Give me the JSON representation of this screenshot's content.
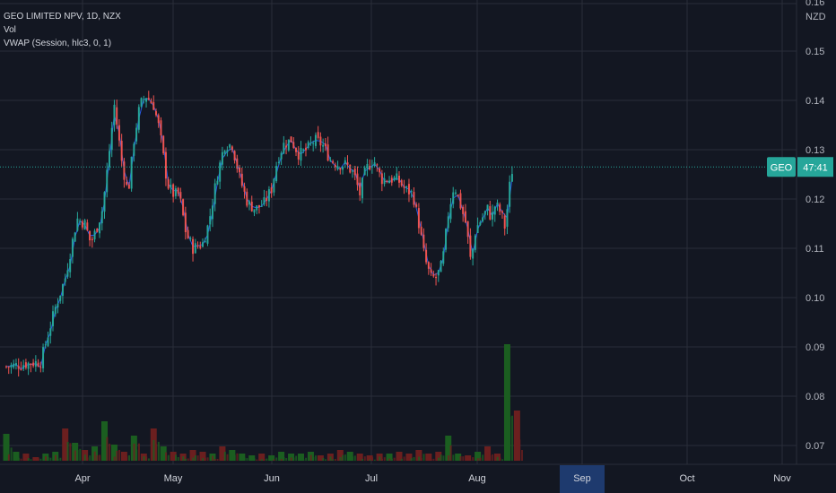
{
  "legend": {
    "symbol_line": "GEO LIMITED NPV, 1D, NZX",
    "vol_label": "Vol",
    "vwap_label": "VWAP (Session, hlc3, 0, 1)"
  },
  "axis": {
    "currency": "NZD",
    "top_clipped_label": "0.16"
  },
  "price_tag": {
    "symbol": "GEO",
    "countdown": "47:41",
    "value": 0.1265
  },
  "colors": {
    "background": "#131722",
    "up": "#26a69a",
    "down": "#ef5350",
    "vwap": "#2962ff",
    "vol_up": "#1b5e20",
    "vol_down": "#6b1f1f",
    "grid": "#2a2e39",
    "highlight": "#1e3a6e"
  },
  "chart_data": {
    "type": "candlestick",
    "title": "GEO LIMITED NPV, 1D, NZX",
    "ylim": [
      0.065,
      0.165
    ],
    "y_ticks": [
      "0.07",
      "0.08",
      "0.09",
      "0.10",
      "0.11",
      "0.12",
      "0.13",
      "0.14",
      "0.15"
    ],
    "x_ticks": [
      "Apr",
      "May",
      "Jun",
      "Jul",
      "Aug",
      "Sep",
      "Oct",
      "Nov"
    ],
    "highlighted_x_label": "Sep",
    "grid": true,
    "waypoints": [
      [
        0.0,
        0.086
      ],
      [
        3.5,
        0.087
      ],
      [
        5.0,
        0.098
      ],
      [
        6.0,
        0.104
      ],
      [
        6.8,
        0.112
      ],
      [
        7.2,
        0.116
      ],
      [
        8.0,
        0.115
      ],
      [
        8.6,
        0.111
      ],
      [
        9.2,
        0.114
      ],
      [
        9.8,
        0.118
      ],
      [
        10.4,
        0.128
      ],
      [
        11.0,
        0.139
      ],
      [
        11.8,
        0.127
      ],
      [
        12.4,
        0.121
      ],
      [
        13.0,
        0.132
      ],
      [
        13.6,
        0.139
      ],
      [
        14.2,
        0.141
      ],
      [
        15.0,
        0.139
      ],
      [
        15.6,
        0.134
      ],
      [
        16.4,
        0.123
      ],
      [
        17.0,
        0.121
      ],
      [
        17.6,
        0.121
      ],
      [
        18.3,
        0.113
      ],
      [
        19.0,
        0.11
      ],
      [
        20.0,
        0.111
      ],
      [
        20.6,
        0.115
      ],
      [
        21.4,
        0.124
      ],
      [
        22.2,
        0.131
      ],
      [
        23.0,
        0.131
      ],
      [
        23.8,
        0.124
      ],
      [
        24.6,
        0.119
      ],
      [
        25.4,
        0.118
      ],
      [
        26.2,
        0.119
      ],
      [
        27.0,
        0.122
      ],
      [
        27.6,
        0.128
      ],
      [
        28.2,
        0.131
      ],
      [
        29.0,
        0.132
      ],
      [
        29.8,
        0.129
      ],
      [
        30.6,
        0.13
      ],
      [
        31.4,
        0.132
      ],
      [
        32.2,
        0.131
      ],
      [
        33.0,
        0.128
      ],
      [
        33.8,
        0.127
      ],
      [
        34.6,
        0.127
      ],
      [
        35.4,
        0.125
      ],
      [
        36.0,
        0.121
      ],
      [
        36.6,
        0.126
      ],
      [
        37.4,
        0.128
      ],
      [
        38.2,
        0.124
      ],
      [
        39.0,
        0.124
      ],
      [
        39.8,
        0.124
      ],
      [
        40.6,
        0.122
      ],
      [
        41.4,
        0.121
      ],
      [
        42.0,
        0.115
      ],
      [
        42.6,
        0.108
      ],
      [
        43.2,
        0.104
      ],
      [
        43.8,
        0.104
      ],
      [
        44.4,
        0.107
      ],
      [
        45.0,
        0.117
      ],
      [
        45.6,
        0.123
      ],
      [
        46.2,
        0.119
      ],
      [
        46.8,
        0.115
      ],
      [
        47.3,
        0.107
      ],
      [
        47.8,
        0.114
      ],
      [
        48.4,
        0.116
      ],
      [
        49.0,
        0.118
      ],
      [
        49.4,
        0.116
      ],
      [
        49.8,
        0.119
      ],
      [
        50.4,
        0.117
      ],
      [
        50.8,
        0.114
      ],
      [
        51.2,
        0.122
      ],
      [
        51.6,
        0.127
      ]
    ],
    "volume_levels": [
      0.15,
      0.05,
      0.04,
      0.02,
      0.04,
      0.05,
      0.18,
      0.1,
      0.06,
      0.08,
      0.22,
      0.09,
      0.05,
      0.14,
      0.04,
      0.18,
      0.08,
      0.05,
      0.04,
      0.06,
      0.05,
      0.04,
      0.08,
      0.06,
      0.04,
      0.03,
      0.04,
      0.03,
      0.05,
      0.04,
      0.04,
      0.05,
      0.03,
      0.04,
      0.06,
      0.05,
      0.04,
      0.03,
      0.04,
      0.04,
      0.05,
      0.04,
      0.06,
      0.04,
      0.05,
      0.14,
      0.04,
      0.03,
      0.05,
      0.08,
      0.04,
      0.65,
      0.28
    ]
  }
}
